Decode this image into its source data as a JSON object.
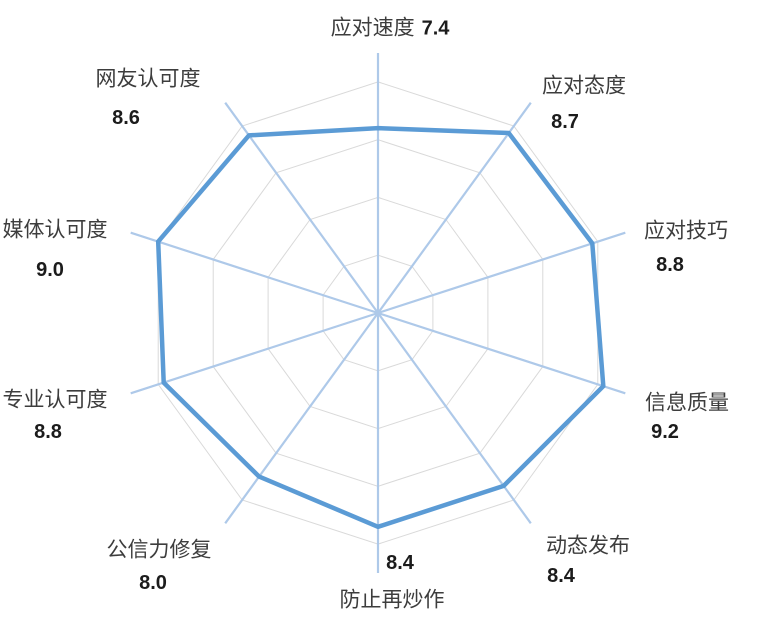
{
  "chart_data": {
    "type": "radar",
    "categories": [
      "应对速度",
      "应对态度",
      "应对技巧",
      "信息质量",
      "动态发布",
      "防止再炒作",
      "公信力修复",
      "专业认可度",
      "媒体认可度",
      "网友认可度"
    ],
    "values": [
      7.4,
      8.7,
      8.8,
      9.2,
      8.4,
      8.4,
      8.0,
      8.8,
      9.0,
      8.6
    ],
    "value_labels": [
      "7.4",
      "8.7",
      "8.8",
      "9.2",
      "8.4",
      "8.4",
      "8.0",
      "8.8",
      "9.0",
      "8.6"
    ],
    "axis_min": 1,
    "axis_max": 10,
    "ring_values": [
      3,
      5,
      7,
      9
    ],
    "grid": "polygon-rings",
    "legend_position": "none",
    "series_fill": "none",
    "colors": {
      "series_line": "#5B9BD5",
      "spoke": "#AEC9E9",
      "ring": "#D9D9D9",
      "category_text": "#3D3D3D",
      "value_text": "#1C1C1C",
      "background": "#FFFFFF"
    }
  }
}
